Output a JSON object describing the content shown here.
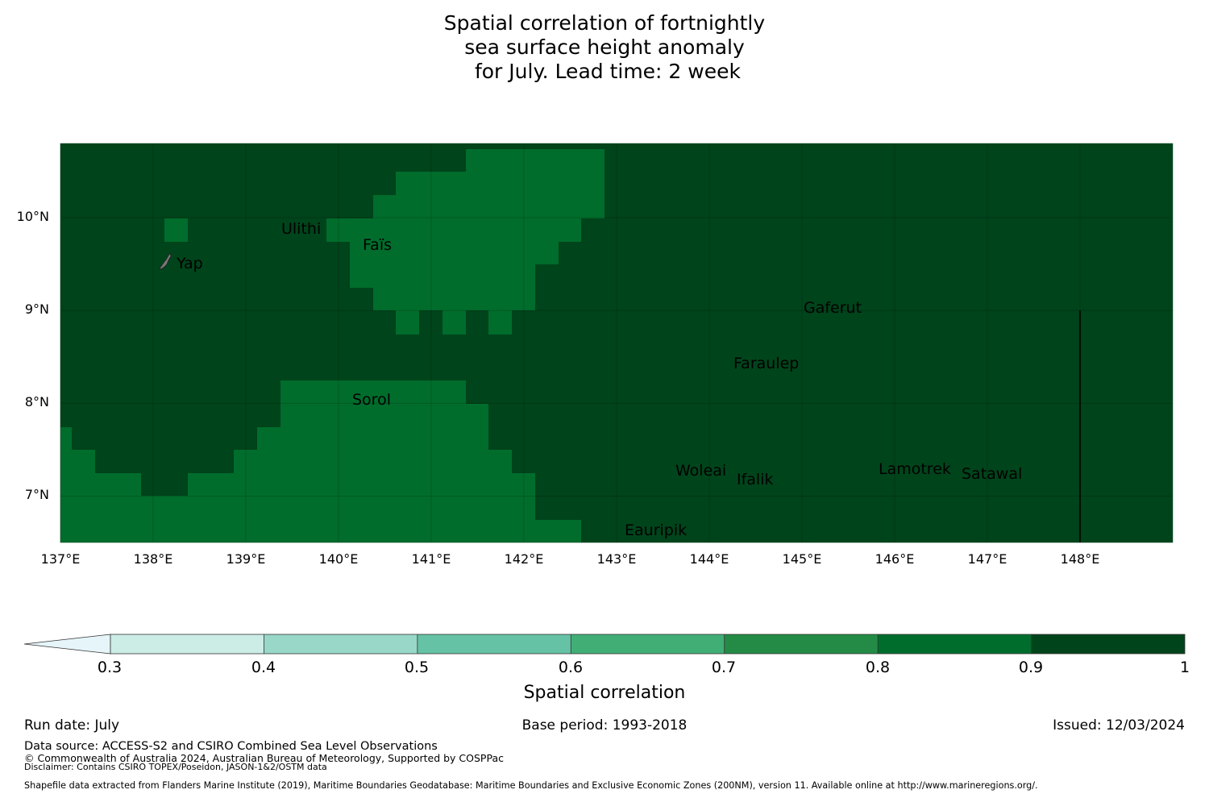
{
  "title_lines": [
    "Spatial correlation of fortnightly",
    "sea surface height anomaly",
    " for July. Lead time: 2 week"
  ],
  "map": {
    "lon_range": [
      137.0,
      149.0
    ],
    "lat_range": [
      6.5,
      10.8
    ],
    "lat_ticks": [
      {
        "value": 10,
        "label": "10°N"
      },
      {
        "value": 9,
        "label": "9°N"
      },
      {
        "value": 8,
        "label": "8°N"
      },
      {
        "value": 7,
        "label": "7°N"
      }
    ],
    "lon_ticks": [
      {
        "value": 137,
        "label": "137°E"
      },
      {
        "value": 138,
        "label": "138°E"
      },
      {
        "value": 139,
        "label": "139°E"
      },
      {
        "value": 140,
        "label": "140°E"
      },
      {
        "value": 141,
        "label": "141°E"
      },
      {
        "value": 142,
        "label": "142°E"
      },
      {
        "value": 143,
        "label": "143°E"
      },
      {
        "value": 144,
        "label": "144°E"
      },
      {
        "value": 145,
        "label": "145°E"
      },
      {
        "value": 146,
        "label": "146°E"
      },
      {
        "value": 147,
        "label": "147°E"
      },
      {
        "value": 148,
        "label": "148°E"
      }
    ],
    "places": [
      {
        "name": "Ulithi",
        "lon": 139.72,
        "lat": 9.93
      },
      {
        "name": "Faïs",
        "lon": 140.52,
        "lat": 9.76
      },
      {
        "name": "Yap",
        "lon": 138.12,
        "lat": 9.53
      },
      {
        "name": "Gaferut",
        "lon": 145.38,
        "lat": 9.23
      },
      {
        "name": "Faraulep",
        "lon": 144.52,
        "lat": 8.6
      },
      {
        "name": "Sorol",
        "lon": 140.38,
        "lat": 8.14
      },
      {
        "name": "Woleai",
        "lon": 143.91,
        "lat": 7.37
      },
      {
        "name": "Ifalik",
        "lon": 144.44,
        "lat": 7.25
      },
      {
        "name": "Lamotrek",
        "lon": 146.37,
        "lat": 7.46
      },
      {
        "name": "Satawal",
        "lon": 147.03,
        "lat": 7.37
      },
      {
        "name": "Eauripik",
        "lon": 143.04,
        "lat": 6.69
      }
    ],
    "boundary_lon": 148.0,
    "boundary_lat_range": [
      6.5,
      9.0
    ]
  },
  "colorbar": {
    "levels": [
      0.3,
      0.4,
      0.5,
      0.6,
      0.7,
      0.8,
      0.9,
      1.0
    ],
    "tick_labels": [
      "0.3",
      "0.4",
      "0.5",
      "0.6",
      "0.7",
      "0.8",
      "0.9",
      "1"
    ],
    "colors": [
      "#ccece6",
      "#99d8c9",
      "#66c2a4",
      "#41ae76",
      "#238b45",
      "#006d2c",
      "#00441b"
    ],
    "under_color": "#e5f5f9",
    "label": "Spatial correlation"
  },
  "footer": {
    "run_date": "Run date: July",
    "base_period": "Base period: 1993-2018",
    "issued": "Issued: 12/03/2024",
    "data_source": "Data source: ACCESS-S2 and CSIRO Combined Sea Level Observations",
    "copyright": "© Commonwealth of Australia 2024, Australian Bureau of Meteorology, Supported by COSPPac",
    "disclaimer": "Disclaimer: Contains CSIRO TOPEX/Poseidon, JASON-1&2/OSTM data",
    "shapefile": "Shapefile data extracted from Flanders Marine Institute (2019), Maritime Boundaries Geodatabase: Maritime Boundaries and Exclusive Economic Zones (200NM), version 11. Available online at http://www.marineregions.org/."
  }
}
